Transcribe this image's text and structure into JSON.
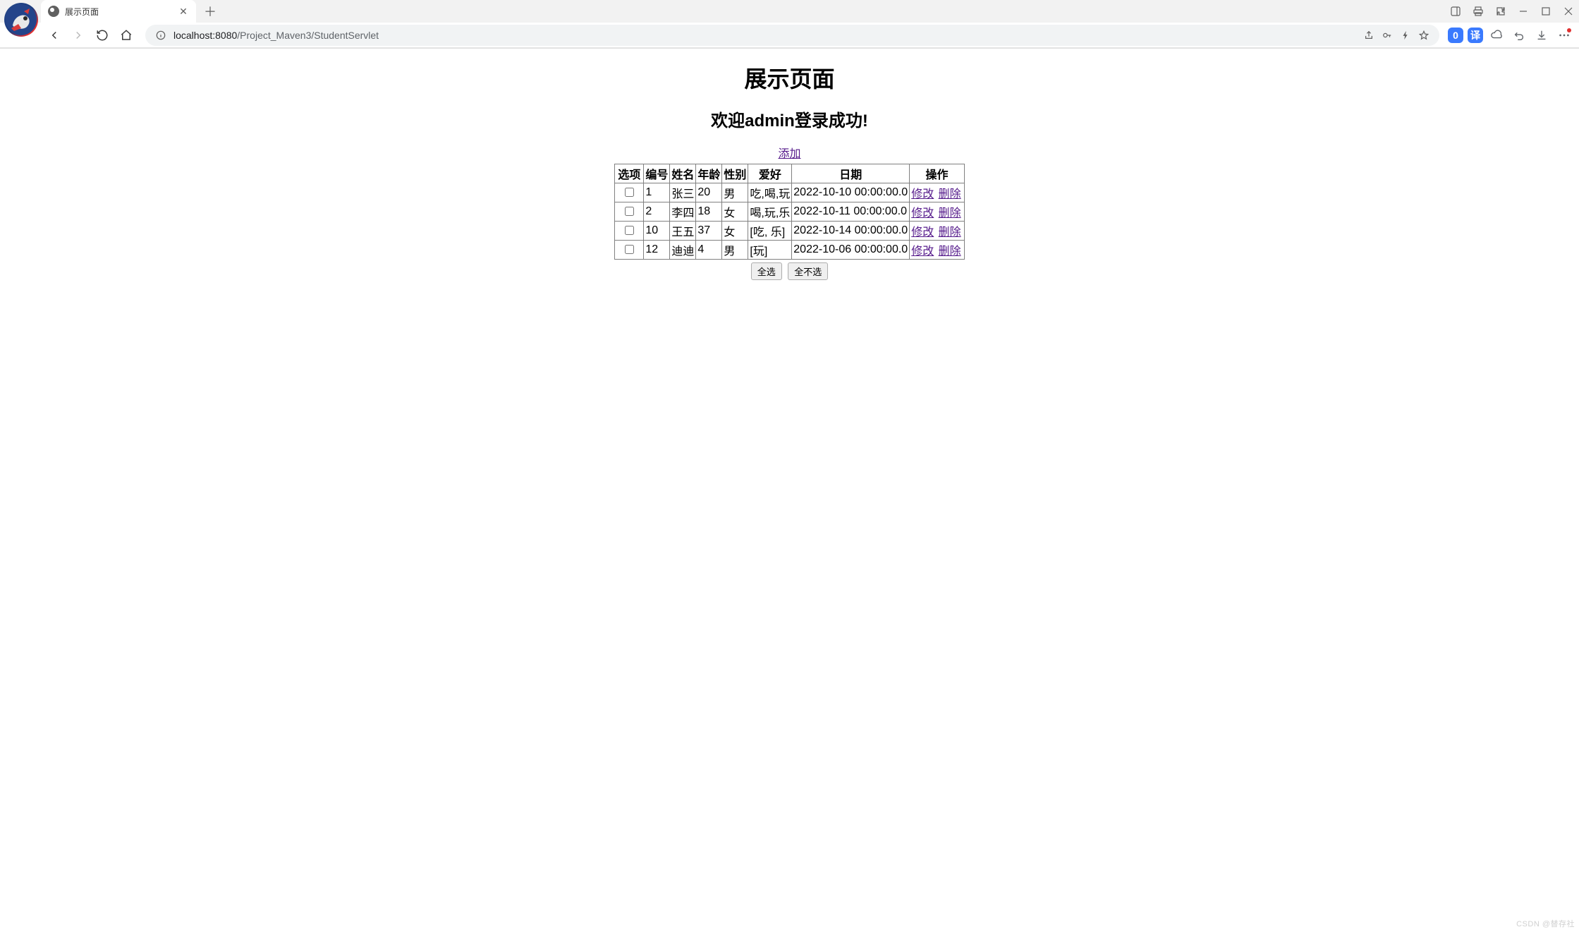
{
  "browser": {
    "tab_title": "展示页面",
    "url_host": "localhost:8080",
    "url_path": "/Project_Maven3/StudentServlet"
  },
  "extensions": {
    "badge1_label": "0",
    "badge1_bg": "#3a7afe",
    "badge2_label": "译",
    "badge2_bg": "#3a7afe"
  },
  "page": {
    "title": "展示页面",
    "welcome": "欢迎admin登录成功!",
    "add_link": "添加",
    "columns": [
      "选项",
      "编号",
      "姓名",
      "年龄",
      "性别",
      "爱好",
      "日期",
      "操作"
    ],
    "rows": [
      {
        "id": "1",
        "name": "张三",
        "age": "20",
        "gender": "男",
        "hobby": "吃,喝,玩",
        "date": "2022-10-10 00:00:00.0"
      },
      {
        "id": "2",
        "name": "李四",
        "age": "18",
        "gender": "女",
        "hobby": "喝,玩,乐",
        "date": "2022-10-11 00:00:00.0"
      },
      {
        "id": "10",
        "name": "王五",
        "age": "37",
        "gender": "女",
        "hobby": "[吃, 乐]",
        "date": "2022-10-14 00:00:00.0"
      },
      {
        "id": "12",
        "name": "迪迪",
        "age": "4",
        "gender": "男",
        "hobby": "[玩]",
        "date": "2022-10-06 00:00:00.0"
      }
    ],
    "edit_label": "修改",
    "delete_label": "删除",
    "select_all": "全选",
    "select_none": "全不选"
  },
  "watermark": "CSDN @替存社"
}
